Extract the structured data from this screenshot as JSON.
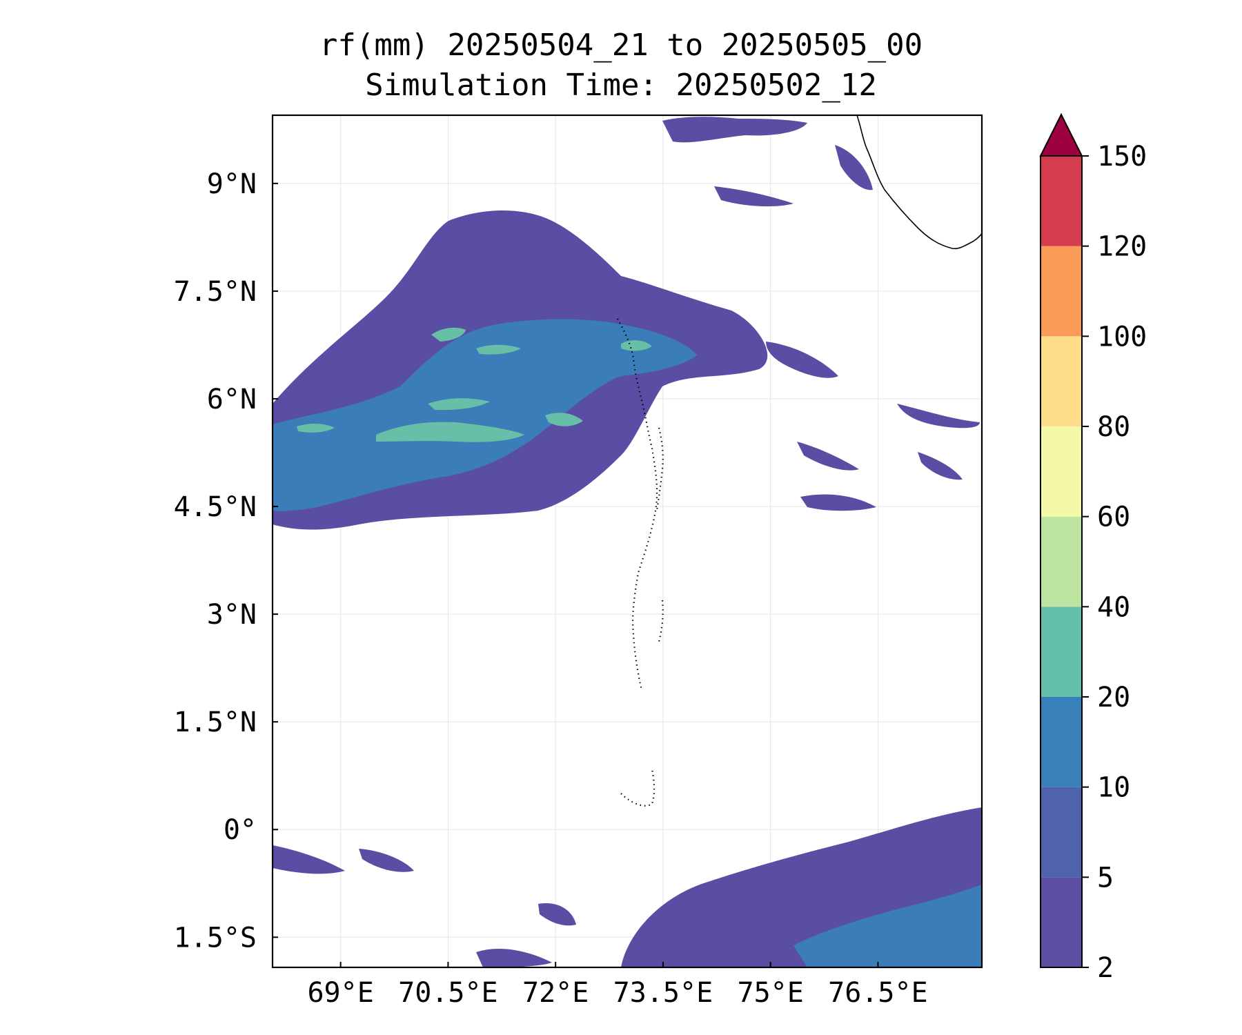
{
  "header": {
    "title_line1": "rf(mm) 20250504_21 to 20250505_00",
    "title_line2": "Simulation Time: 20250502_12"
  },
  "map": {
    "x_ticks": [
      {
        "value": 69.0,
        "label": "69°E"
      },
      {
        "value": 70.5,
        "label": "70.5°E"
      },
      {
        "value": 72.0,
        "label": "72°E"
      },
      {
        "value": 73.5,
        "label": "73.5°E"
      },
      {
        "value": 75.0,
        "label": "75°E"
      },
      {
        "value": 76.5,
        "label": "76.5°E"
      }
    ],
    "y_ticks": [
      {
        "value": 9.0,
        "label": "9°N"
      },
      {
        "value": 7.5,
        "label": "7.5°N"
      },
      {
        "value": 6.0,
        "label": "6°N"
      },
      {
        "value": 4.5,
        "label": "4.5°N"
      },
      {
        "value": 3.0,
        "label": "3°N"
      },
      {
        "value": 1.5,
        "label": "1.5°N"
      },
      {
        "value": 0.0,
        "label": "0°"
      },
      {
        "value": -1.5,
        "label": "1.5°S"
      }
    ],
    "lon_range": [
      68.05,
      77.95
    ],
    "lat_range": [
      -1.92,
      9.95
    ],
    "grid": true,
    "colors": {
      "grid": "#e6e6e6",
      "coast": "#000000"
    }
  },
  "colorbar": {
    "levels": [
      2,
      5,
      10,
      20,
      40,
      60,
      80,
      100,
      120,
      150
    ],
    "labels": [
      "2",
      "5",
      "10",
      "20",
      "40",
      "60",
      "80",
      "100",
      "120",
      "150"
    ],
    "colors": [
      "#5e4fa2",
      "#4f62ad",
      "#3880b9",
      "#65c0a9",
      "#bde4a0",
      "#f3f9a9",
      "#fddd8a",
      "#f99b56",
      "#d53d4f"
    ],
    "extend_color": "#9e0142",
    "extend": "max",
    "position": "right"
  }
}
